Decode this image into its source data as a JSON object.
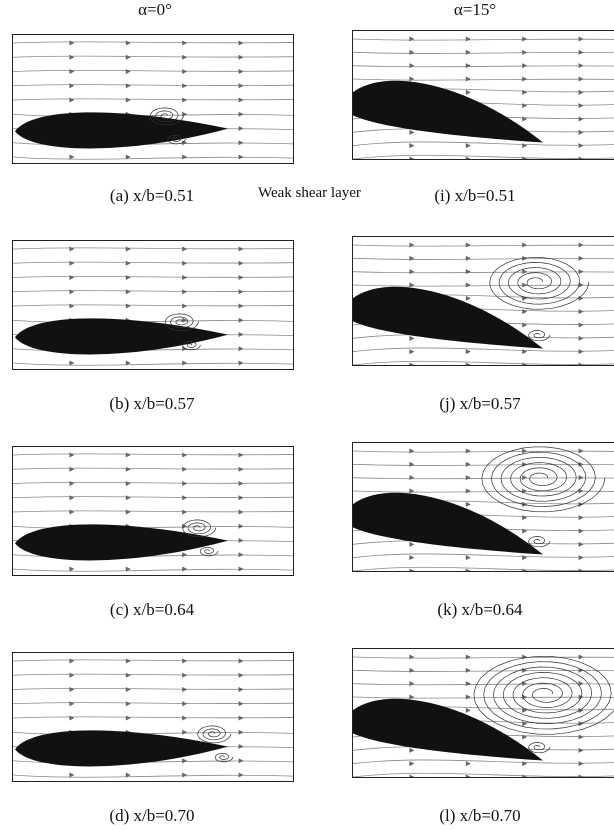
{
  "headers": {
    "left": "α=0°",
    "right": "α=15°"
  },
  "note": "Weak shear layer",
  "captions": {
    "a": "(a) x/b=0.51",
    "i": "(i) x/b=0.51",
    "b": "(b) x/b=0.57",
    "j": "(j) x/b=0.57",
    "c": "(c) x/b=0.64",
    "k": "(k) x/b=0.64",
    "d": "(d) x/b=0.70",
    "l": "(l) x/b=0.70"
  }
}
